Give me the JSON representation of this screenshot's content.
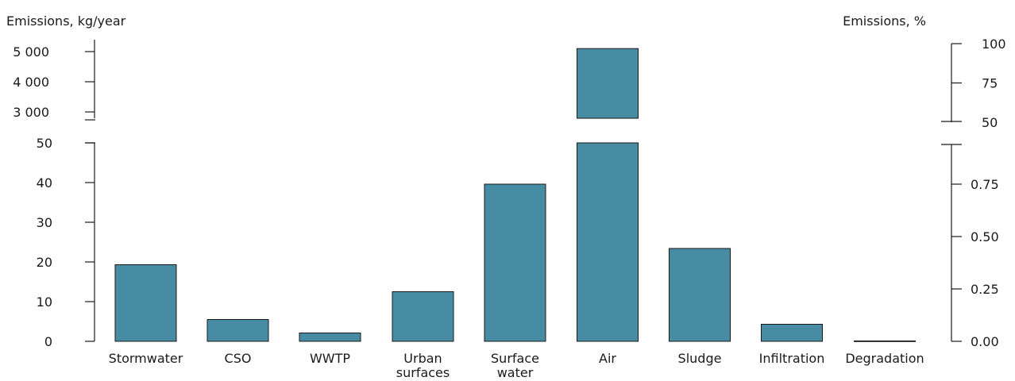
{
  "chart_data": {
    "type": "bar",
    "ylabel_left": "Emissions, kg/year",
    "ylabel_right": "Emissions, %",
    "bar_color": "#488ca3",
    "axis_break": true,
    "categories": [
      [
        "Stormwater"
      ],
      [
        "CSO"
      ],
      [
        "WWTP"
      ],
      [
        "Urban",
        "surfaces"
      ],
      [
        "Surface",
        "water"
      ],
      [
        "Air"
      ],
      [
        "Sludge"
      ],
      [
        "Infiltration"
      ],
      [
        "Degradation"
      ]
    ],
    "values": [
      19.3,
      5.5,
      2.1,
      12.5,
      39.6,
      5100,
      23.4,
      4.3,
      0.1
    ],
    "left_axis": {
      "lower": {
        "range": [
          0,
          50
        ],
        "ticks": [
          0,
          10,
          20,
          30,
          40,
          50
        ],
        "tick_labels": [
          "0",
          "10",
          "20",
          "30",
          "40",
          "50"
        ]
      },
      "upper": {
        "range": [
          3000,
          5000
        ],
        "ticks": [
          3000,
          4000,
          5000
        ],
        "tick_labels": [
          "3 000",
          "4 000",
          "5 000"
        ]
      }
    },
    "right_axis": {
      "lower": {
        "ticks": [
          0,
          0.25,
          0.5,
          0.75
        ],
        "tick_labels": [
          "0.00",
          "0.25",
          "0.50",
          "0.75"
        ]
      },
      "upper": {
        "ticks": [
          50,
          75,
          100
        ],
        "tick_labels": [
          "50",
          "75",
          "100"
        ]
      }
    }
  }
}
